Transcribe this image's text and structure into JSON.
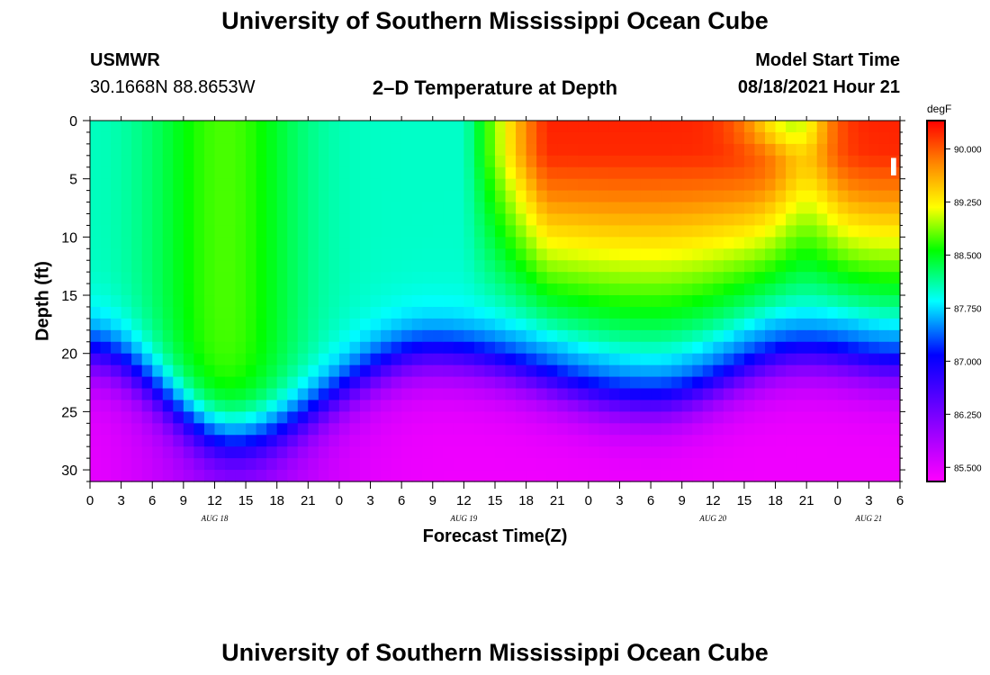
{
  "header": {
    "title": "University of Southern Mississippi Ocean Cube",
    "station": "USMWR",
    "coords": "30.1668N  88.8653W",
    "model_start_label": "Model Start Time",
    "model_start_value": "08/18/2021 Hour 21"
  },
  "footer": {
    "title": "University of Southern Mississippi Ocean Cube"
  },
  "chart_data": {
    "type": "heatmap",
    "title": "2–D Temperature at Depth",
    "xlabel": "Forecast Time(Z)",
    "ylabel": "Depth (ft)",
    "x_start": "08/18/2021 00Z",
    "x_end": "08/21/2021 06Z",
    "x_hours": [
      0,
      78
    ],
    "x_ticks": [
      "0",
      "3",
      "6",
      "9",
      "12",
      "15",
      "18",
      "21",
      "0",
      "3",
      "6",
      "9",
      "12",
      "15",
      "18",
      "21",
      "0",
      "3",
      "6",
      "9",
      "12",
      "15",
      "18",
      "21",
      "0",
      "3",
      "6"
    ],
    "date_labels": [
      {
        "label": "AUG 18",
        "hour": 12
      },
      {
        "label": "AUG 19",
        "hour": 36
      },
      {
        "label": "AUG 20",
        "hour": 60
      },
      {
        "label": "AUG 21",
        "hour": 75
      }
    ],
    "ylim": [
      0,
      31
    ],
    "y_inverted": true,
    "y_ticks": [
      0,
      5,
      10,
      15,
      20,
      25,
      30
    ],
    "colorbar": {
      "unit": "degF",
      "range": [
        85.3,
        90.4
      ],
      "ticks": [
        "90.000",
        "89.250",
        "88.500",
        "87.750",
        "87.000",
        "86.250",
        "85.500"
      ]
    },
    "features": {
      "thermocline_depth_ft": [
        {
          "hour": 0,
          "depth": 20
        },
        {
          "hour": 14,
          "depth": 27
        },
        {
          "hour": 33,
          "depth": 20
        },
        {
          "hour": 54,
          "depth": 24
        },
        {
          "hour": 69,
          "depth": 20
        },
        {
          "hour": 78,
          "depth": 21
        }
      ],
      "warm_core": {
        "hour_center": 52,
        "depth_center": 5,
        "max_temp": 90.3
      }
    }
  },
  "colors": {
    "scale": [
      "#ff00ff",
      "#9900ff",
      "#0000ff",
      "#00ffff",
      "#00ff00",
      "#ffff00",
      "#ff8800",
      "#ff0000"
    ]
  }
}
